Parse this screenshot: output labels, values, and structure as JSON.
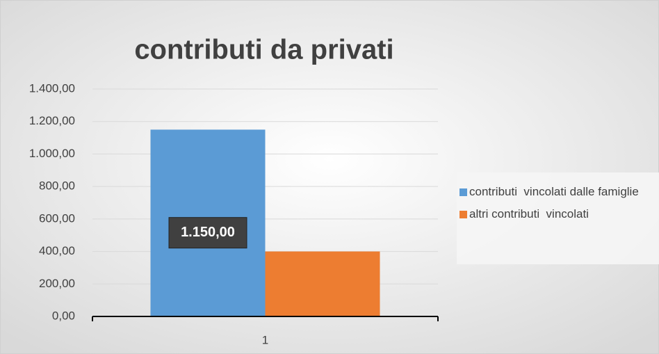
{
  "chart_data": {
    "type": "bar",
    "title": "contributi da privati",
    "categories": [
      "1"
    ],
    "series": [
      {
        "name": "contributi  vincolati dalle famiglie",
        "color": "#5b9bd5",
        "values": [
          1150
        ],
        "value_labels": [
          "1.150,00"
        ]
      },
      {
        "name": "altri contributi  vincolati",
        "color": "#ed7d31",
        "values": [
          400
        ]
      }
    ],
    "ylim": [
      0,
      1400
    ],
    "yticks": [
      {
        "value": 0,
        "label": "0,00"
      },
      {
        "value": 200,
        "label": "200,00"
      },
      {
        "value": 400,
        "label": "400,00"
      },
      {
        "value": 600,
        "label": "600,00"
      },
      {
        "value": 800,
        "label": "800,00"
      },
      {
        "value": 1000,
        "label": "1.000,00"
      },
      {
        "value": 1200,
        "label": "1.200,00"
      },
      {
        "value": 1400,
        "label": "1.400,00"
      }
    ],
    "grid": true,
    "legend": "right"
  }
}
